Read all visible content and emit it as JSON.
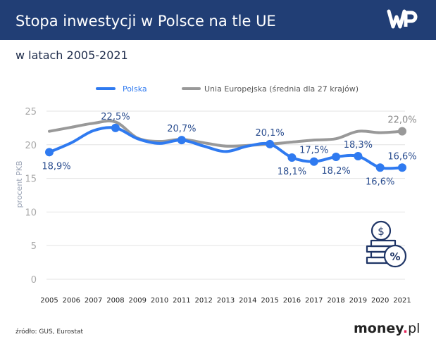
{
  "header": {
    "title": "Stopa inwestycji w Polsce na tle UE",
    "logo_text": "WP",
    "bg_color": "#213e75"
  },
  "subtitle": "w latach 2005-2021",
  "footer": {
    "source": "źródło: GUS, Eurostat",
    "brand": "money.pl",
    "brand_dot_color": "#e5245a"
  },
  "decoration": {
    "icon": "coins-percent-icon",
    "color": "#1f3566"
  },
  "chart_data": {
    "type": "line",
    "title": "Stopa inwestycji w Polsce na tle UE",
    "subtitle": "w latach 2005-2021",
    "ylabel": "procent PKB",
    "xlabel": "",
    "ylim": [
      0,
      25
    ],
    "yticks": [
      "0",
      "5",
      "10",
      "15",
      "20",
      "25"
    ],
    "ytick_values": [
      0,
      5,
      10,
      15,
      20,
      25
    ],
    "grid": true,
    "legend_position": "top-center",
    "categories": [
      "2005",
      "2006",
      "2007",
      "2008",
      "2009",
      "2010",
      "2011",
      "2012",
      "2013",
      "2014",
      "2015",
      "2016",
      "2017",
      "2018",
      "2019",
      "2020",
      "2021"
    ],
    "series": [
      {
        "name": "Polska",
        "color": "#2f7af0",
        "label_color": "#2a4d8f",
        "values": [
          18.9,
          20.3,
          22.1,
          22.5,
          20.9,
          20.2,
          20.7,
          19.8,
          19.0,
          19.8,
          20.1,
          18.1,
          17.5,
          18.2,
          18.3,
          16.6,
          16.6
        ],
        "data_labels": [
          "18,9%",
          null,
          null,
          "22,5%",
          null,
          null,
          "20,7%",
          null,
          null,
          null,
          "20,1%",
          "18,1%",
          "17,5%",
          "18,2%",
          "18,3%",
          "16,6%",
          "16,6%"
        ]
      },
      {
        "name": "Unia Europejska (średnia dla 27 krajów)",
        "color": "#999999",
        "label_color": "#8a8a8a",
        "values": [
          22.0,
          22.6,
          23.2,
          23.4,
          21.0,
          20.5,
          20.8,
          20.3,
          19.8,
          19.9,
          20.1,
          20.4,
          20.7,
          20.9,
          22.0,
          21.8,
          22.0
        ],
        "data_labels": [
          null,
          null,
          null,
          null,
          null,
          null,
          null,
          null,
          null,
          null,
          null,
          null,
          null,
          null,
          null,
          null,
          "22,0%"
        ]
      }
    ]
  }
}
